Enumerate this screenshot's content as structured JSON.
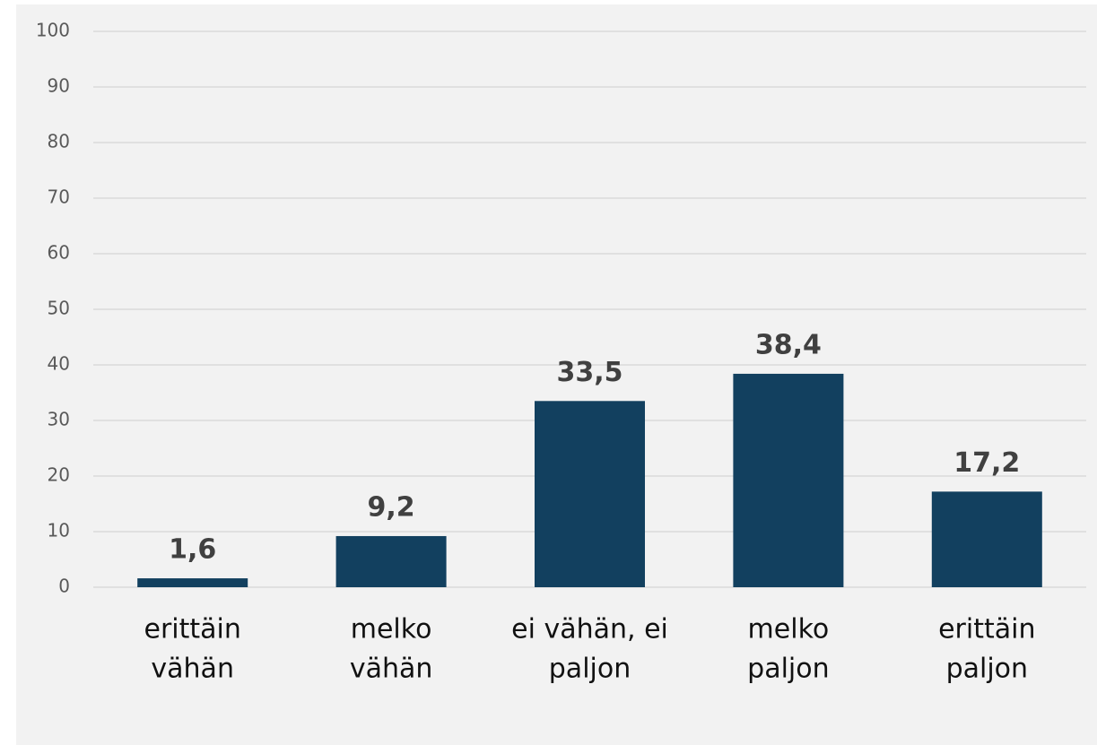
{
  "chart_data": {
    "type": "bar",
    "categories": [
      [
        "erittäin",
        "vähän"
      ],
      [
        "melko",
        "vähän"
      ],
      [
        "ei vähän, ei",
        "paljon"
      ],
      [
        "melko",
        "paljon"
      ],
      [
        "erittäin",
        "paljon"
      ]
    ],
    "values": [
      1.6,
      9.2,
      33.5,
      38.4,
      17.2
    ],
    "value_labels": [
      "1,6",
      "9,2",
      "33,5",
      "38,4",
      "17,2"
    ],
    "color": "#12405f",
    "ylim": [
      0,
      100
    ],
    "yticks": [
      0,
      10,
      20,
      30,
      40,
      50,
      60,
      70,
      80,
      90,
      100
    ],
    "grid": true
  }
}
